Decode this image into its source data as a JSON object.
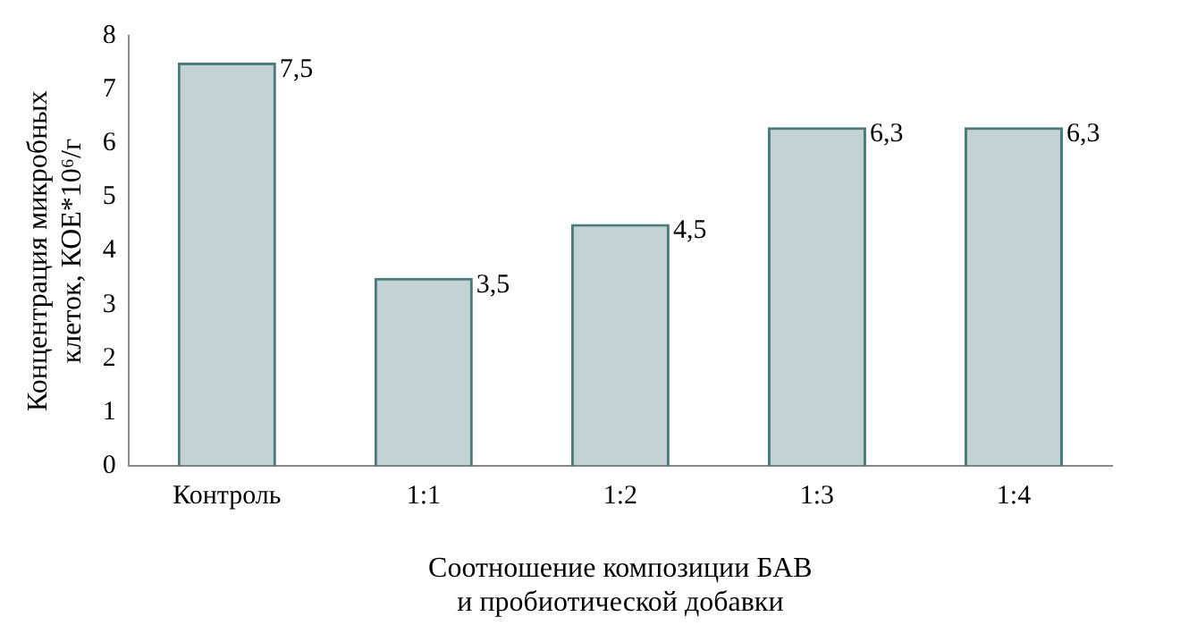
{
  "chart_data": {
    "type": "bar",
    "categories": [
      "Контроль",
      "1:1",
      "1:2",
      "1:3",
      "1:4"
    ],
    "values": [
      7.5,
      3.5,
      4.5,
      6.3,
      6.3
    ],
    "value_labels": [
      "7,5",
      "3,5",
      "4,5",
      "6,3",
      "6,3"
    ],
    "color": "#4a7a7a",
    "ylim": [
      0,
      8
    ],
    "yticks": [
      0,
      1,
      2,
      3,
      4,
      5,
      6,
      7,
      8
    ],
    "grid": false,
    "legend": false,
    "xlabel": "Соотношение композиции БАВ\nи пробиотической добавки",
    "ylabel": "Концентрация микробных\nклеток, КОЕ*10⁶/г"
  }
}
